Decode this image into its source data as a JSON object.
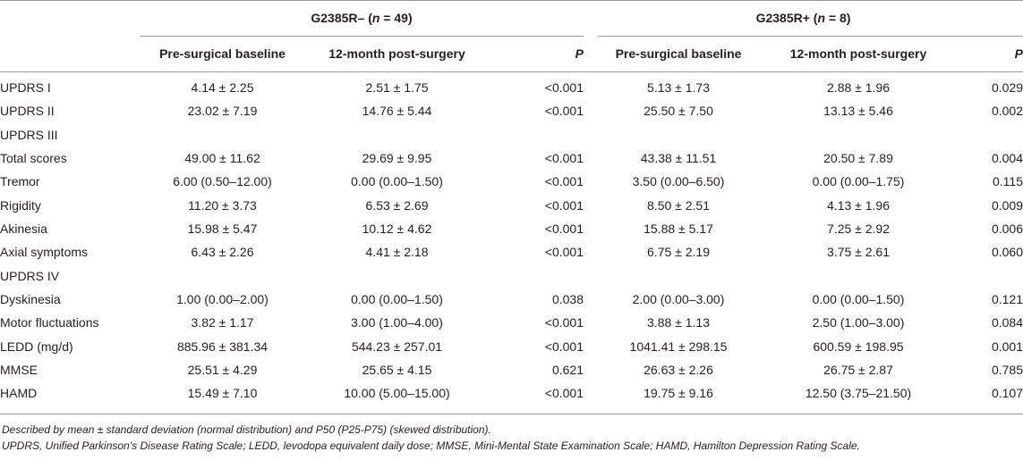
{
  "groups": [
    {
      "name": "G2385R– (",
      "n_label": "n",
      "n_value": " = 49)"
    },
    {
      "name": "G2385R+ (",
      "n_label": "n",
      "n_value": " = 8)"
    }
  ],
  "columns": {
    "pre": "Pre-surgical baseline",
    "post": "12-month post-surgery",
    "p": "P"
  },
  "rows": [
    {
      "label": "UPDRS I",
      "neg_pre": "4.14 ± 2.25",
      "neg_post": "2.51 ± 1.75",
      "neg_p": "<0.001",
      "pos_pre": "5.13 ± 1.73",
      "pos_post": "2.88 ± 1.96",
      "pos_p": "0.029"
    },
    {
      "label": "UPDRS II",
      "neg_pre": "23.02 ± 7.19",
      "neg_post": "14.76 ± 5.44",
      "neg_p": "<0.001",
      "pos_pre": "25.50 ± 7.50",
      "pos_post": "13.13 ± 5.46",
      "pos_p": "0.002"
    },
    {
      "label": "UPDRS III",
      "neg_pre": "",
      "neg_post": "",
      "neg_p": "",
      "pos_pre": "",
      "pos_post": "",
      "pos_p": ""
    },
    {
      "label": "Total scores",
      "neg_pre": "49.00 ± 11.62",
      "neg_post": "29.69 ± 9.95",
      "neg_p": "<0.001",
      "pos_pre": "43.38 ± 11.51",
      "pos_post": "20.50 ± 7.89",
      "pos_p": "0.004"
    },
    {
      "label": "Tremor",
      "neg_pre": "6.00 (0.50–12.00)",
      "neg_post": "0.00 (0.00–1.50)",
      "neg_p": "<0.001",
      "pos_pre": "3.50 (0.00–6.50)",
      "pos_post": "0.00 (0.00–1.75)",
      "pos_p": "0.115"
    },
    {
      "label": "Rigidity",
      "neg_pre": "11.20 ± 3.73",
      "neg_post": "6.53 ± 2.69",
      "neg_p": "<0.001",
      "pos_pre": "8.50 ± 2.51",
      "pos_post": "4.13 ± 1.96",
      "pos_p": "0.009"
    },
    {
      "label": "Akinesia",
      "neg_pre": "15.98 ± 5.47",
      "neg_post": "10.12 ± 4.62",
      "neg_p": "<0.001",
      "pos_pre": "15.88 ± 5.17",
      "pos_post": "7.25 ± 2.92",
      "pos_p": "0.006"
    },
    {
      "label": "Axial symptoms",
      "neg_pre": "6.43 ± 2.26",
      "neg_post": "4.41 ± 2.18",
      "neg_p": "<0.001",
      "pos_pre": "6.75 ± 2.19",
      "pos_post": "3.75 ± 2.61",
      "pos_p": "0.060"
    },
    {
      "label": "UPDRS IV",
      "neg_pre": "",
      "neg_post": "",
      "neg_p": "",
      "pos_pre": "",
      "pos_post": "",
      "pos_p": ""
    },
    {
      "label": "Dyskinesia",
      "neg_pre": "1.00 (0.00–2.00)",
      "neg_post": "0.00 (0.00–1.50)",
      "neg_p": "0.038",
      "pos_pre": "2.00 (0.00–3.00)",
      "pos_post": "0.00 (0.00–1.50)",
      "pos_p": "0.121"
    },
    {
      "label": "Motor fluctuations",
      "neg_pre": "3.82 ± 1.17",
      "neg_post": "3.00 (1.00–4.00)",
      "neg_p": "<0.001",
      "pos_pre": "3.88 ± 1.13",
      "pos_post": "2.50 (1.00–3.00)",
      "pos_p": "0.084"
    },
    {
      "label": "LEDD (mg/d)",
      "neg_pre": "885.96 ± 381.34",
      "neg_post": "544.23 ± 257.01",
      "neg_p": "<0.001",
      "pos_pre": "1041.41 ± 298.15",
      "pos_post": "600.59 ± 198.95",
      "pos_p": "0.001"
    },
    {
      "label": "MMSE",
      "neg_pre": "25.51 ± 4.29",
      "neg_post": "25.65 ± 4.15",
      "neg_p": "0.621",
      "pos_pre": "26.63 ± 2.26",
      "pos_post": "26.75 ± 2.87",
      "pos_p": "0.785"
    },
    {
      "label": "HAMD",
      "neg_pre": "15.49 ± 7.10",
      "neg_post": "10.00 (5.00–15.00)",
      "neg_p": "<0.001",
      "pos_pre": "19.75 ± 9.16",
      "pos_post": "12.50 (3.75–21.50)",
      "pos_p": "0.107"
    }
  ],
  "footnotes": [
    "Described by mean ± standard deviation (normal distribution) and P50 (P25-P75) (skewed distribution).",
    "UPDRS, Unified Parkinson’s Disease Rating Scale; LEDD, levodopa equivalent daily dose; MMSE, Mini-Mental State Examination Scale; HAMD, Hamilton Depression Rating Scale."
  ]
}
